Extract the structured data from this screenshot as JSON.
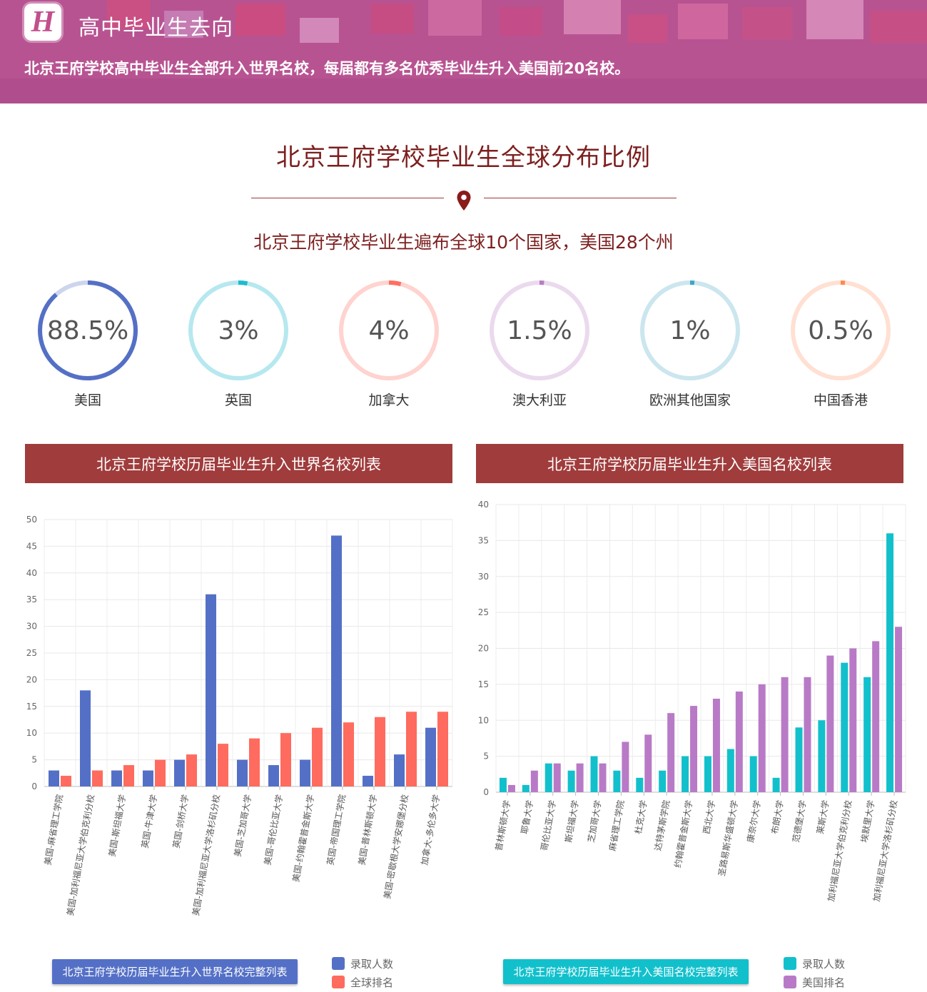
{
  "banner": {
    "logo_letter": "H",
    "title": "高中毕业生去向",
    "subtitle": "北京王府学校高中毕业生全部升入世界名校，每届都有多名优秀毕业生升入美国前20名校。"
  },
  "section": {
    "title": "北京王府学校毕业生全球分布比例",
    "subtitle": "北京王府学校毕业生遍布全球10个国家，美国28个州"
  },
  "rings": [
    {
      "value": "88.5%",
      "fraction": 0.885,
      "label": "美国",
      "color": "#5470c6",
      "track": "#cdd5ee"
    },
    {
      "value": "3%",
      "fraction": 0.03,
      "label": "英国",
      "color": "#1cbcd0",
      "track": "#b6e8ef"
    },
    {
      "value": "4%",
      "fraction": 0.04,
      "label": "加拿大",
      "color": "#ff6f61",
      "track": "#ffd3cf"
    },
    {
      "value": "1.5%",
      "fraction": 0.015,
      "label": "澳大利亚",
      "color": "#b97cc4",
      "track": "#ebd9ee"
    },
    {
      "value": "1%",
      "fraction": 0.01,
      "label": "欧洲其他国家",
      "color": "#3fa7c5",
      "track": "#cbe6ee"
    },
    {
      "value": "0.5%",
      "fraction": 0.005,
      "label": "中国香港",
      "color": "#ff8a50",
      "track": "#ffe0d2"
    }
  ],
  "panels": {
    "world_title": "北京王府学校历届毕业生升入世界名校列表",
    "us_title": "北京王府学校历届毕业生升入美国名校列表",
    "world_button": "北京王府学校历届毕业生升入世界名校完整列表",
    "us_button": "北京王府学校历届毕业生升入美国名校完整列表"
  },
  "chart_data": [
    {
      "type": "bar",
      "categories": [
        "美国-麻省理工学院",
        "美国-加利福尼亚大学伯克利分校",
        "美国-斯坦福大学",
        "英国-牛津大学",
        "英国-剑桥大学",
        "美国-加利福尼亚大学洛杉矶分校",
        "美国-芝加哥大学",
        "美国-哥伦比亚大学",
        "美国-约翰霍普金斯大学",
        "英国-帝国理工学院",
        "美国-普林斯顿大学",
        "美国-密歇根大学安娜堡分校",
        "加拿大-多伦多大学"
      ],
      "series": [
        {
          "name": "录取人数",
          "color": "#5470c6",
          "values": [
            3,
            18,
            3,
            3,
            5,
            36,
            5,
            4,
            5,
            47,
            2,
            6,
            11
          ]
        },
        {
          "name": "全球排名",
          "color": "#ff6b5e",
          "values": [
            2,
            3,
            4,
            5,
            6,
            8,
            9,
            10,
            11,
            12,
            13,
            14,
            14
          ]
        }
      ],
      "ylim": [
        0,
        50
      ],
      "yticks": [
        "0",
        "5",
        "10",
        "15",
        "20",
        "25",
        "30",
        "35",
        "40",
        "45",
        "50"
      ],
      "grid": true,
      "legend": "bottom-right"
    },
    {
      "type": "bar",
      "categories": [
        "普林斯顿大学",
        "耶鲁大学",
        "哥伦比亚大学",
        "斯坦福大学",
        "芝加哥大学",
        "麻省理工学院",
        "杜克大学",
        "达特茅斯学院",
        "约翰霍普金斯大学",
        "西北大学",
        "圣路易斯华盛顿大学",
        "康奈尔大学",
        "布朗大学",
        "范德堡大学",
        "莱斯大学",
        "加利福尼亚大学伯克利分校",
        "埃默里大学",
        "加利福尼亚大学洛杉矶分校"
      ],
      "series": [
        {
          "name": "录取人数",
          "color": "#12c0cc",
          "values": [
            2,
            1,
            4,
            3,
            5,
            3,
            2,
            3,
            5,
            5,
            6,
            5,
            2,
            9,
            10,
            18,
            16,
            36
          ]
        },
        {
          "name": "美国排名",
          "color": "#b87ac6",
          "values": [
            1,
            3,
            4,
            4,
            4,
            7,
            8,
            11,
            12,
            13,
            14,
            15,
            16,
            16,
            19,
            20,
            21,
            23
          ]
        }
      ],
      "ylim": [
        0,
        40
      ],
      "yticks": [
        "0",
        "5",
        "10",
        "15",
        "20",
        "25",
        "30",
        "35",
        "40"
      ],
      "grid": true,
      "legend": "bottom-right"
    }
  ]
}
